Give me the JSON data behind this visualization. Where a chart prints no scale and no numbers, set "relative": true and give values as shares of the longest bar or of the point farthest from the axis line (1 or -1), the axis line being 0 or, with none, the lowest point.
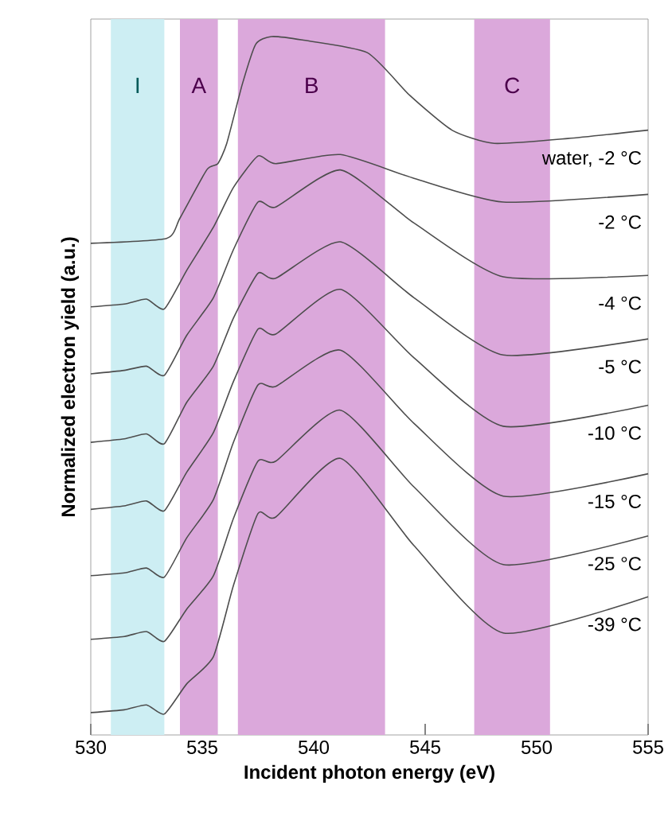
{
  "chart_data": {
    "type": "line",
    "relative": true,
    "xlabel": "Incident photon energy (eV)",
    "ylabel": "Normalized electron yield (a.u.)",
    "xlim": [
      530,
      555
    ],
    "xticks": [
      530,
      535,
      540,
      545,
      550,
      555
    ],
    "bands": [
      {
        "axis": "x",
        "from": 530.9,
        "to": 533.3,
        "label": "I",
        "color": "#cdeef3"
      },
      {
        "axis": "x",
        "from": 534.0,
        "to": 535.7,
        "label": "A",
        "color": "#dba8db"
      },
      {
        "axis": "x",
        "from": 536.6,
        "to": 543.2,
        "label": "B",
        "color": "#dba8db"
      },
      {
        "axis": "x",
        "from": 547.2,
        "to": 550.6,
        "label": "C",
        "color": "#dba8db"
      }
    ],
    "series": [
      {
        "name": "water, -2 °C",
        "color": "#4d4d4d",
        "x": [
          530,
          533.4,
          534,
          535.2,
          535.7,
          536.1,
          536.8,
          537.4,
          538.1,
          539.5,
          542.4,
          544.3,
          546.2,
          548.1,
          551.4,
          555
        ],
        "values": [
          0.704,
          0.711,
          0.74,
          0.809,
          0.818,
          0.847,
          0.932,
          0.989,
          1.0,
          0.995,
          0.977,
          0.916,
          0.866,
          0.847,
          0.854,
          0.866
        ]
      },
      {
        "name": "-2 °C",
        "color": "#4d4d4d",
        "x": [
          530,
          531.5,
          532.5,
          533.3,
          534.3,
          535.5,
          536.4,
          537.5,
          538.3,
          541.2,
          544.5,
          548.5,
          555
        ],
        "values": [
          0.613,
          0.617,
          0.624,
          0.61,
          0.665,
          0.727,
          0.784,
          0.829,
          0.818,
          0.831,
          0.797,
          0.763,
          0.774
        ]
      },
      {
        "name": "-4 °C",
        "color": "#4d4d4d",
        "x": [
          530,
          531.5,
          532.5,
          533.3,
          534.3,
          535.5,
          536.4,
          537.5,
          538.3,
          541.2,
          544.5,
          548.5,
          555
        ],
        "values": [
          0.517,
          0.522,
          0.528,
          0.515,
          0.572,
          0.626,
          0.695,
          0.763,
          0.756,
          0.809,
          0.733,
          0.656,
          0.658
        ]
      },
      {
        "name": "-5 °C",
        "color": "#4d4d4d",
        "x": [
          530,
          531.5,
          532.5,
          533.3,
          534.3,
          535.5,
          536.4,
          537.5,
          538.3,
          541.2,
          544.5,
          548.5,
          555
        ],
        "values": [
          0.419,
          0.424,
          0.431,
          0.417,
          0.476,
          0.528,
          0.597,
          0.661,
          0.654,
          0.706,
          0.626,
          0.544,
          0.567
        ]
      },
      {
        "name": "-10 °C",
        "color": "#4d4d4d",
        "x": [
          530,
          531.5,
          532.5,
          533.3,
          534.3,
          535.5,
          536.4,
          537.5,
          538.3,
          541.2,
          544.5,
          548.5,
          555
        ],
        "values": [
          0.323,
          0.328,
          0.335,
          0.321,
          0.376,
          0.433,
          0.506,
          0.581,
          0.574,
          0.638,
          0.54,
          0.442,
          0.472
        ]
      },
      {
        "name": "-15 °C",
        "color": "#4d4d4d",
        "x": [
          530,
          531.5,
          532.5,
          533.3,
          534.3,
          535.5,
          536.4,
          537.5,
          538.3,
          541.2,
          544.5,
          548.5,
          555
        ],
        "values": [
          0.228,
          0.232,
          0.239,
          0.226,
          0.282,
          0.337,
          0.419,
          0.501,
          0.499,
          0.551,
          0.446,
          0.342,
          0.374
        ]
      },
      {
        "name": "-25 °C",
        "color": "#4d4d4d",
        "x": [
          530,
          531.5,
          532.5,
          533.3,
          534.3,
          535.5,
          536.4,
          537.5,
          538.3,
          541.2,
          544.5,
          548.5,
          555
        ],
        "values": [
          0.137,
          0.141,
          0.148,
          0.134,
          0.18,
          0.228,
          0.31,
          0.392,
          0.392,
          0.465,
          0.355,
          0.244,
          0.285
        ]
      },
      {
        "name": "-39 °C",
        "color": "#4d4d4d",
        "x": [
          530,
          531.5,
          532.5,
          533.3,
          534.3,
          535.5,
          536.4,
          537.5,
          538.3,
          541.2,
          544.5,
          548.5,
          555
        ],
        "values": [
          0.032,
          0.036,
          0.043,
          0.03,
          0.073,
          0.112,
          0.214,
          0.317,
          0.312,
          0.396,
          0.271,
          0.146,
          0.198
        ]
      }
    ]
  }
}
